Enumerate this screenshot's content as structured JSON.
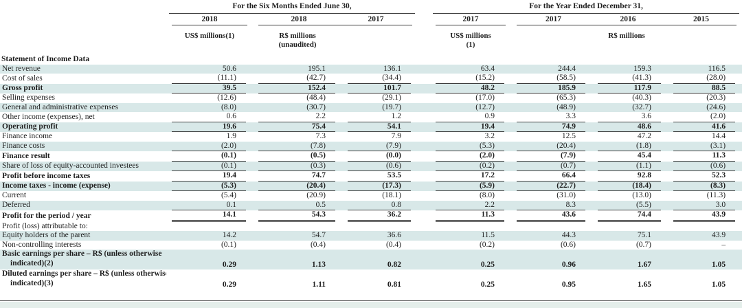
{
  "header": {
    "group_six_months": "For the Six Months Ended June 30,",
    "group_year": "For the Year Ended December 31,",
    "years_sm": [
      "2018",
      "2018",
      "2017"
    ],
    "years_yr": [
      "2017",
      "2017",
      "2016",
      "2015"
    ],
    "unit_usd_sm": "US$ millions(1)",
    "unit_rs_sm_line1": "R$ millions",
    "unit_rs_sm_line2": "(unaudited)",
    "unit_usd_yr_line1": "US$ millions",
    "unit_usd_yr_line2": "(1)",
    "unit_rs_yr": "R$ millions"
  },
  "section_title": "Statement of Income Data",
  "colors": {
    "stripe": "#d8e8e8",
    "rule": "#3c3c3c",
    "text": "#1f1f1f",
    "bottom_strip": "#e4eeea"
  },
  "table": {
    "rows": [
      {
        "label": "Net revenue",
        "values": [
          "50.6",
          "195.1",
          "136.1",
          "63.4",
          "244.4",
          "159.3",
          "116.5"
        ],
        "stripe": true
      },
      {
        "label": "Cost of sales",
        "values": [
          "(11.1)",
          "(42.7)",
          "(34.4)",
          "(15.2)",
          "(58.5)",
          "(41.3)",
          "(28.0)"
        ],
        "underline": true
      },
      {
        "label": "Gross profit",
        "values": [
          "39.5",
          "152.4",
          "101.7",
          "48.2",
          "185.9",
          "117.9",
          "88.5"
        ],
        "bold": true,
        "stripe": true,
        "underline": true
      },
      {
        "label": "Selling expenses",
        "values": [
          "(12.6)",
          "(48.4)",
          "(29.1)",
          "(17.0)",
          "(65.3)",
          "(40.3)",
          "(20.3)"
        ]
      },
      {
        "label": "General and administrative expenses",
        "values": [
          "(8.0)",
          "(30.7)",
          "(19.7)",
          "(12.7)",
          "(48.9)",
          "(32.7)",
          "(24.6)"
        ],
        "stripe": true
      },
      {
        "label": "Other income (expenses), net",
        "values": [
          "0.6",
          "2.2",
          "1.2",
          "0.9",
          "3.3",
          "3.6",
          "(2.0)"
        ],
        "underline": true
      },
      {
        "label": "Operating profit",
        "values": [
          "19.6",
          "75.4",
          "54.1",
          "19.4",
          "74.9",
          "48.6",
          "41.6"
        ],
        "bold": true,
        "stripe": true,
        "underline": true
      },
      {
        "label": "Finance income",
        "values": [
          "1.9",
          "7.3",
          "7.9",
          "3.2",
          "12.5",
          "47.2",
          "14.4"
        ]
      },
      {
        "label": "Finance costs",
        "values": [
          "(2.0)",
          "(7.8)",
          "(7.9)",
          "(5.3)",
          "(20.4)",
          "(1.8)",
          "(3.1)"
        ],
        "stripe": true,
        "underline": true
      },
      {
        "label": "Finance result",
        "values": [
          "(0.1)",
          "(0.5)",
          "(0.0)",
          "(2.0)",
          "(7.9)",
          "45.4",
          "11.3"
        ],
        "bold": true,
        "underline": true
      },
      {
        "label": "Share of loss of equity-accounted investees",
        "values": [
          "(0.1)",
          "(0.3)",
          "(0.6)",
          "(0.2)",
          "(0.7)",
          "(1.1)",
          "(0.6)"
        ],
        "stripe": true,
        "underline": true
      },
      {
        "label": "Profit before income taxes",
        "values": [
          "19.4",
          "74.7",
          "53.5",
          "17.2",
          "66.4",
          "92.8",
          "52.3"
        ],
        "bold": true,
        "underline": true
      },
      {
        "label": "Income taxes - income (expense)",
        "values": [
          "(5.3)",
          "(20.4)",
          "(17.3)",
          "(5.9)",
          "(22.7)",
          "(18.4)",
          "(8.3)"
        ],
        "bold": true,
        "stripe": true,
        "underline": true
      },
      {
        "label": "Current",
        "values": [
          "(5.4)",
          "(20.9)",
          "(18.1)",
          "(8.0)",
          "(31.0)",
          "(13.0)",
          "(11.3)"
        ]
      },
      {
        "label": "Deferred",
        "values": [
          "0.1",
          "0.5",
          "0.8",
          "2.2",
          "8.3",
          "(5.5)",
          "3.0"
        ],
        "stripe": true,
        "underline": true
      },
      {
        "label": "Profit for the period / year",
        "values": [
          "14.1",
          "54.3",
          "36.2",
          "11.3",
          "43.6",
          "74.4",
          "43.9"
        ],
        "bold": true,
        "double": true
      },
      {
        "label": "Profit (loss) attributable to:",
        "label_only": true
      },
      {
        "label": "Equity holders of the parent",
        "values": [
          "14.2",
          "54.7",
          "36.6",
          "11.5",
          "44.3",
          "75.1",
          "43.9"
        ],
        "stripe": true
      },
      {
        "label": "Non-controlling interests",
        "values": [
          "(0.1)",
          "(0.4)",
          "(0.4)",
          "(0.2)",
          "(0.6)",
          "(0.7)",
          "–"
        ]
      },
      {
        "label": "Basic earnings per share – R$ (unless otherwise",
        "label2": "indicated)(2)",
        "values": [
          "0.29",
          "1.13",
          "0.82",
          "0.25",
          "0.96",
          "1.67",
          "1.05"
        ],
        "bold": true,
        "stripe": true,
        "two_line": true
      },
      {
        "label": "Diluted earnings per share – R$ (unless otherwise",
        "label2": "indicated)(3)",
        "values": [
          "0.29",
          "1.11",
          "0.81",
          "0.25",
          "0.95",
          "1.65",
          "1.05"
        ],
        "bold": true,
        "two_line": true
      }
    ]
  }
}
